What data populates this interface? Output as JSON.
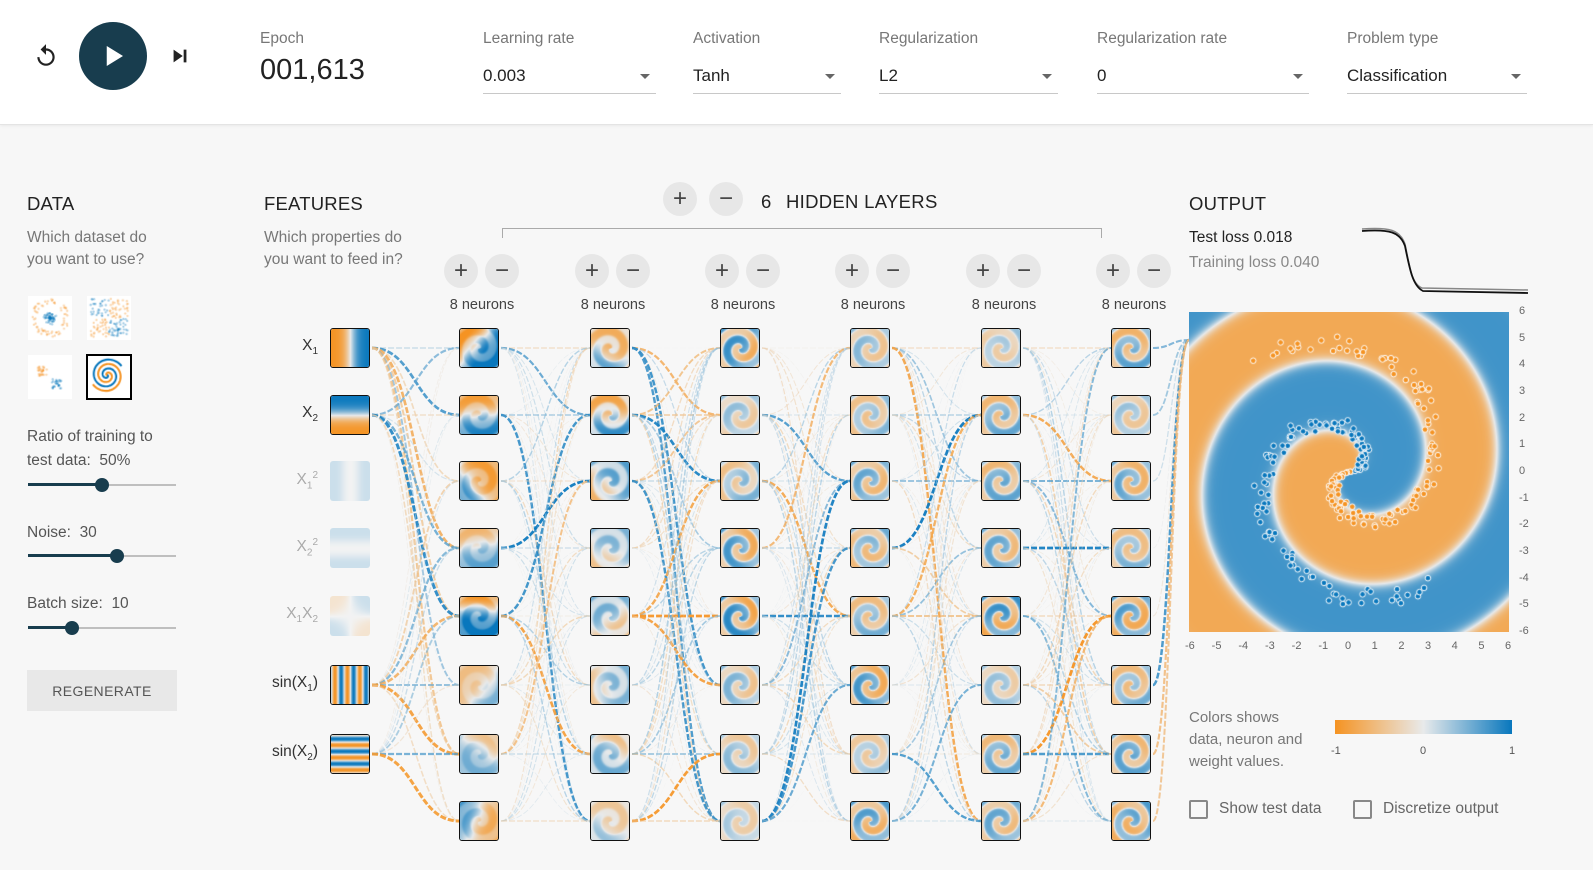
{
  "toolbar": {
    "epoch_label": "Epoch",
    "epoch_value": "001,613",
    "learning_rate": {
      "label": "Learning rate",
      "value": "0.003"
    },
    "activation": {
      "label": "Activation",
      "value": "Tanh"
    },
    "regularization": {
      "label": "Regularization",
      "value": "L2"
    },
    "regularization_rate": {
      "label": "Regularization rate",
      "value": "0"
    },
    "problem_type": {
      "label": "Problem type",
      "value": "Classification"
    }
  },
  "data_panel": {
    "title": "DATA",
    "subtitle_line1": "Which dataset do",
    "subtitle_line2": "you want to use?",
    "datasets": [
      "circle",
      "xor",
      "gaussian",
      "spiral"
    ],
    "selected_dataset": "spiral",
    "ratio_label": "Ratio of training to",
    "ratio_label2": "test data:",
    "ratio_value": "50%",
    "ratio_fraction": 0.5,
    "noise_label": "Noise:",
    "noise_value": "30",
    "noise_fraction": 0.6,
    "batch_label": "Batch size:",
    "batch_value": "10",
    "batch_fraction": 0.3,
    "regenerate": "REGENERATE"
  },
  "features_panel": {
    "title": "FEATURES",
    "subtitle_line1": "Which properties do",
    "subtitle_line2": "you want to feed in?",
    "features": [
      {
        "base": "X",
        "sub": "1",
        "sup": "",
        "base2": "",
        "sub2": "",
        "suffix": "",
        "active": true
      },
      {
        "base": "X",
        "sub": "2",
        "sup": "",
        "base2": "",
        "sub2": "",
        "suffix": "",
        "active": true
      },
      {
        "base": "X",
        "sub": "1",
        "sup": "2",
        "base2": "",
        "sub2": "",
        "suffix": "",
        "active": false
      },
      {
        "base": "X",
        "sub": "2",
        "sup": "2",
        "base2": "",
        "sub2": "",
        "suffix": "",
        "active": false
      },
      {
        "base": "X",
        "sub": "1",
        "sup": "",
        "base2": "X",
        "sub2": "2",
        "suffix": "",
        "active": false
      },
      {
        "base": "sin(X",
        "sub": "1",
        "sup": "",
        "base2": "",
        "sub2": "",
        "suffix": ")",
        "active": true
      },
      {
        "base": "sin(X",
        "sub": "2",
        "sup": "",
        "base2": "",
        "sub2": "",
        "suffix": ")",
        "active": true
      }
    ]
  },
  "hidden_layers": {
    "count": "6",
    "label": "HIDDEN LAYERS",
    "add_symbol": "+",
    "remove_symbol": "−",
    "layers": [
      {
        "neurons_label": "8 neurons"
      },
      {
        "neurons_label": "8 neurons"
      },
      {
        "neurons_label": "8 neurons"
      },
      {
        "neurons_label": "8 neurons"
      },
      {
        "neurons_label": "8 neurons"
      },
      {
        "neurons_label": "8 neurons"
      }
    ]
  },
  "output_panel": {
    "title": "OUTPUT",
    "test_loss": "Test loss 0.018",
    "training_loss": "Training loss 0.040",
    "x_ticks": [
      "-6",
      "-5",
      "-4",
      "-3",
      "-2",
      "-1",
      "0",
      "1",
      "2",
      "3",
      "4",
      "5",
      "6"
    ],
    "y_ticks": [
      "6",
      "5",
      "4",
      "3",
      "2",
      "1",
      "0",
      "-1",
      "-2",
      "-3",
      "-4",
      "-5",
      "-6"
    ],
    "legend_line1": "Colors shows",
    "legend_line2": "data, neuron and",
    "legend_line3": "weight values.",
    "legend_min": "-1",
    "legend_mid": "0",
    "legend_max": "1",
    "show_test_data": "Show test data",
    "discretize_output": "Discretize output"
  },
  "colors": {
    "orange": "#f59322",
    "blue": "#0877bd",
    "neutral": "#e8eaeb",
    "accent": "#183d4e"
  },
  "icons": {
    "reset": "reset-icon",
    "play": "play-icon",
    "step": "step-forward-icon"
  }
}
